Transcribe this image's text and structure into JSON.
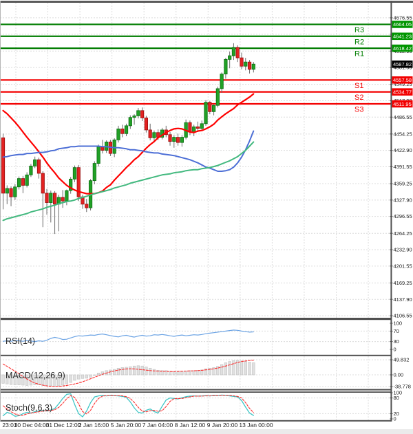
{
  "colors": {
    "up_fill": "#21a126",
    "up_border": "#0c6d12",
    "down_fill": "#e32222",
    "down_border": "#990f0f",
    "wick": "#6b6b6b",
    "ma_red": "#fe0000",
    "ma_blue": "#4d6fd6",
    "ma_green": "#43b97f",
    "resistance": "#007d00",
    "support": "#f40000",
    "resistance_label_bg": "#009500",
    "support_label_bg": "#f20000",
    "price_label_bg": "#000000",
    "rsi_line": "#6ba3e4",
    "macd_bar_fill": "#e0e0e0",
    "macd_bar_border": "#c4c4c4",
    "signal_line": "#fb2f2f",
    "stoch_k": "#3fc6c6",
    "stoch_d": "#fb2f2f",
    "grid": "#dcdcdc",
    "border": "#4f4f4f",
    "text": "#1a1a1a"
  },
  "chart_data": {
    "type": "candlestick",
    "timeframe_note": "4h candles",
    "price_axis": {
      "min": 4101.3,
      "max": 4705.4,
      "ticks": [
        4676.55,
        4645.2,
        4612.9,
        4581.55,
        4549.25,
        4517.9,
        4486.55,
        4454.25,
        4422.9,
        4391.55,
        4359.25,
        4327.9,
        4296.55,
        4264.25,
        4232.9,
        4201.55,
        4169.25,
        4137.9,
        4106.55
      ]
    },
    "x_axis": {
      "labels": [
        "23:01",
        "30 Dec 04:00",
        "31 Dec 12:00",
        "2 Jan 16:00",
        "5 Jan 20:00",
        "7 Jan 04:00",
        "8 Jan 12:00",
        "9 Jan 20:00",
        "13 Jan 00:00"
      ],
      "label_x": [
        14,
        46,
        92,
        136,
        183,
        229,
        276,
        323,
        372
      ]
    },
    "levels": {
      "resistance": [
        {
          "name": "R3",
          "value": 4664.05
        },
        {
          "name": "R2",
          "value": 4641.23
        },
        {
          "name": "R1",
          "value": 4618.42
        }
      ],
      "support": [
        {
          "name": "S1",
          "value": 4557.58
        },
        {
          "name": "S2",
          "value": 4534.77
        },
        {
          "name": "S3",
          "value": 4511.95
        }
      ]
    },
    "current_price": 4587.82,
    "candles": [
      [
        4447,
        4455,
        4310,
        4341
      ],
      [
        4341,
        4356,
        4320,
        4350
      ],
      [
        4350,
        4354,
        4316,
        4334
      ],
      [
        4334,
        4358,
        4328,
        4353
      ],
      [
        4353,
        4373,
        4348,
        4369
      ],
      [
        4369,
        4374,
        4341,
        4356
      ],
      [
        4356,
        4381,
        4352,
        4376
      ],
      [
        4376,
        4397,
        4372,
        4393
      ],
      [
        4393,
        4411,
        4389,
        4405
      ],
      [
        4405,
        4409,
        4369,
        4379
      ],
      [
        4379,
        4383,
        4276,
        4341
      ],
      [
        4341,
        4349,
        4300,
        4323
      ],
      [
        4323,
        4346,
        4285,
        4341
      ],
      [
        4341,
        4345,
        4263,
        4320
      ],
      [
        4320,
        4338,
        4268,
        4333
      ],
      [
        4333,
        4347,
        4313,
        4326
      ],
      [
        4326,
        4348,
        4318,
        4346
      ],
      [
        4346,
        4372,
        4340,
        4368
      ],
      [
        4368,
        4394,
        4362,
        4390
      ],
      [
        4390,
        4395,
        4326,
        4334
      ],
      [
        4334,
        4338,
        4311,
        4320
      ],
      [
        4320,
        4330,
        4305,
        4313
      ],
      [
        4313,
        4368,
        4308,
        4365
      ],
      [
        4365,
        4402,
        4358,
        4398
      ],
      [
        4398,
        4434,
        4392,
        4430
      ],
      [
        4430,
        4443,
        4417,
        4423
      ],
      [
        4423,
        4442,
        4418,
        4439
      ],
      [
        4439,
        4443,
        4412,
        4417
      ],
      [
        4417,
        4446,
        4410,
        4443
      ],
      [
        4443,
        4470,
        4438,
        4464
      ],
      [
        4464,
        4472,
        4448,
        4455
      ],
      [
        4455,
        4474,
        4450,
        4470
      ],
      [
        4470,
        4490,
        4464,
        4486
      ],
      [
        4486,
        4492,
        4472,
        4489
      ],
      [
        4489,
        4504,
        4484,
        4499
      ],
      [
        4499,
        4505,
        4479,
        4485
      ],
      [
        4485,
        4489,
        4457,
        4462
      ],
      [
        4462,
        4474,
        4442,
        4447
      ],
      [
        4447,
        4461,
        4438,
        4457
      ],
      [
        4457,
        4463,
        4443,
        4448
      ],
      [
        4448,
        4466,
        4444,
        4462
      ],
      [
        4462,
        4470,
        4448,
        4453
      ],
      [
        4453,
        4458,
        4432,
        4440
      ],
      [
        4440,
        4452,
        4428,
        4448
      ],
      [
        4448,
        4455,
        4432,
        4438
      ],
      [
        4438,
        4452,
        4430,
        4448
      ],
      [
        4448,
        4482,
        4444,
        4476
      ],
      [
        4476,
        4480,
        4452,
        4458
      ],
      [
        4458,
        4472,
        4450,
        4468
      ],
      [
        4468,
        4478,
        4458,
        4465
      ],
      [
        4465,
        4480,
        4460,
        4474
      ],
      [
        4474,
        4519,
        4470,
        4515
      ],
      [
        4515,
        4517,
        4492,
        4497
      ],
      [
        4497,
        4512,
        4490,
        4509
      ],
      [
        4509,
        4545,
        4505,
        4541
      ],
      [
        4541,
        4572,
        4533,
        4569
      ],
      [
        4569,
        4600,
        4560,
        4597
      ],
      [
        4597,
        4612,
        4580,
        4604
      ],
      [
        4604,
        4628,
        4596,
        4620
      ],
      [
        4620,
        4624,
        4592,
        4600
      ],
      [
        4600,
        4610,
        4578,
        4584
      ],
      [
        4584,
        4600,
        4576,
        4592
      ],
      [
        4592,
        4596,
        4570,
        4578
      ],
      [
        4578,
        4592,
        4572,
        4588
      ]
    ],
    "ma_red": [
      4499,
      4493,
      4485,
      4477,
      4468,
      4458,
      4448,
      4439,
      4430,
      4420,
      4410,
      4399,
      4389,
      4380,
      4370,
      4363,
      4356,
      4351,
      4347,
      4344,
      4342,
      4340,
      4340,
      4340,
      4342,
      4345,
      4352,
      4357,
      4366,
      4374,
      4382,
      4390,
      4397,
      4405,
      4411,
      4419,
      4427,
      4434,
      4440,
      4447,
      4452,
      4457,
      4461,
      4464,
      4465,
      4464,
      4461,
      4458,
      4457,
      4460,
      4461,
      4464,
      4468,
      4473,
      4481,
      4487,
      4493,
      4498,
      4503,
      4510,
      4515,
      4520,
      4525,
      4531
    ],
    "ma_blue": [
      4410,
      4411,
      4413,
      4414,
      4415,
      4415,
      4417,
      4417,
      4418,
      4419,
      4419,
      4420,
      4422,
      4423,
      4426,
      4427,
      4428,
      4430,
      4430,
      4431,
      4431,
      4431,
      4431,
      4431,
      4431,
      4430,
      4430,
      4429,
      4428,
      4428,
      4427,
      4426,
      4424,
      4424,
      4423,
      4422,
      4420,
      4419,
      4418,
      4418,
      4416,
      4415,
      4414,
      4413,
      4411,
      4409,
      4407,
      4405,
      4402,
      4399,
      4395,
      4391,
      4389,
      4386,
      4383,
      4383,
      4384,
      4386,
      4391,
      4399,
      4410,
      4424,
      4441,
      4460
    ],
    "ma_green": [
      4289,
      4292,
      4294,
      4296,
      4298,
      4300,
      4302,
      4305,
      4307,
      4309,
      4311,
      4314,
      4316,
      4318,
      4321,
      4323,
      4325,
      4326,
      4328,
      4331,
      4333,
      4335,
      4338,
      4340,
      4342,
      4344,
      4346,
      4348,
      4351,
      4353,
      4355,
      4357,
      4360,
      4362,
      4364,
      4366,
      4368,
      4370,
      4372,
      4374,
      4376,
      4377,
      4378,
      4380,
      4381,
      4382,
      4384,
      4385,
      4386,
      4386,
      4388,
      4389,
      4390,
      4392,
      4394,
      4397,
      4400,
      4403,
      4407,
      4411,
      4417,
      4423,
      4431,
      4439
    ],
    "rsi": {
      "label": "RSI(14)",
      "ticks": [
        {
          "label": "100",
          "value": 100
        },
        {
          "label": "70",
          "value": 70
        },
        {
          "label": "30",
          "value": 30
        },
        {
          "label": "0",
          "value": 0
        }
      ],
      "guides": [
        70,
        30
      ],
      "values": [
        31,
        33,
        31,
        34,
        33,
        31,
        34,
        32,
        30,
        33,
        31,
        35,
        42,
        46,
        43,
        38,
        39,
        44,
        49,
        52,
        51,
        53,
        55,
        54,
        57,
        59,
        56,
        53,
        50,
        48,
        52,
        54,
        50,
        47,
        51,
        54,
        51,
        52,
        56,
        55,
        57,
        55,
        52,
        50,
        53,
        55,
        52,
        54,
        56,
        55,
        57,
        60,
        62,
        64,
        66,
        68,
        70,
        72,
        74,
        73,
        70,
        68,
        66,
        67
      ]
    },
    "macd": {
      "label": "MACD(12,26,9)",
      "ticks": [
        {
          "label": "49.832",
          "value": 49.832
        },
        {
          "label": "0.00",
          "value": 0
        },
        {
          "label": "-38.778",
          "value": -38.778
        }
      ],
      "hist": [
        -28,
        -30,
        -32,
        -33,
        -33,
        -34,
        -35,
        -34,
        -33,
        -33,
        -35,
        -36,
        -36,
        -37,
        -36,
        -34,
        -30,
        -25,
        -18,
        -14,
        -12,
        -11,
        -8,
        -2,
        6,
        10,
        14,
        16,
        18,
        22,
        24,
        25,
        27,
        29,
        30,
        29,
        26,
        22,
        18,
        15,
        14,
        14,
        12,
        10,
        10,
        11,
        13,
        14,
        14,
        15,
        16,
        20,
        22,
        24,
        28,
        34,
        40,
        44,
        47,
        48,
        46,
        44,
        42,
        40
      ],
      "signal": [
        36,
        28,
        20,
        12,
        4,
        -6,
        -14,
        -21,
        -27,
        -31,
        -34,
        -36.5,
        -38,
        -38.5,
        -38,
        -37,
        -35,
        -33,
        -30,
        -27,
        -23,
        -18,
        -13,
        -8,
        -3,
        2,
        6,
        10,
        13,
        16,
        18,
        19.5,
        20,
        19.5,
        18.5,
        17,
        15.5,
        14,
        13,
        12.5,
        12,
        11.5,
        11,
        11,
        11.5,
        12,
        12.5,
        13,
        13.5,
        14,
        15,
        16.5,
        18,
        20,
        22.5,
        25.5,
        29,
        33,
        37,
        41,
        44,
        46,
        47.5,
        48.5
      ]
    },
    "stoch": {
      "label": "Stoch(9,6,3)",
      "ticks": [
        {
          "label": "100",
          "value": 100
        },
        {
          "label": "80",
          "value": 80
        },
        {
          "label": "20",
          "value": 20
        },
        {
          "label": "0",
          "value": 0
        }
      ],
      "guides": [
        80,
        20
      ],
      "k": [
        12,
        25,
        20,
        10,
        12,
        20,
        25,
        22,
        28,
        30,
        32,
        30,
        34,
        40,
        58,
        78,
        94,
        96,
        55,
        20,
        8,
        30,
        62,
        84,
        88,
        90,
        88,
        90,
        89,
        88,
        86,
        82,
        65,
        42,
        25,
        22,
        33,
        38,
        28,
        22,
        48,
        72,
        80,
        78,
        76,
        81,
        85,
        87,
        88,
        87,
        88,
        89,
        88,
        90,
        89,
        91,
        90,
        88,
        86,
        84,
        70,
        45,
        22,
        13
      ],
      "d": [
        50,
        38,
        27,
        19,
        14,
        14,
        19,
        22,
        25,
        27,
        30,
        31,
        32,
        35,
        44,
        59,
        77,
        89,
        82,
        57,
        28,
        19,
        33,
        59,
        78,
        87,
        89,
        89,
        89,
        89,
        88,
        85,
        78,
        63,
        44,
        30,
        27,
        31,
        33,
        29,
        31,
        47,
        67,
        77,
        78,
        78,
        81,
        84,
        87,
        87,
        87,
        88,
        88,
        89,
        89,
        90,
        90,
        90,
        88,
        86,
        80,
        62,
        40,
        24
      ]
    }
  }
}
